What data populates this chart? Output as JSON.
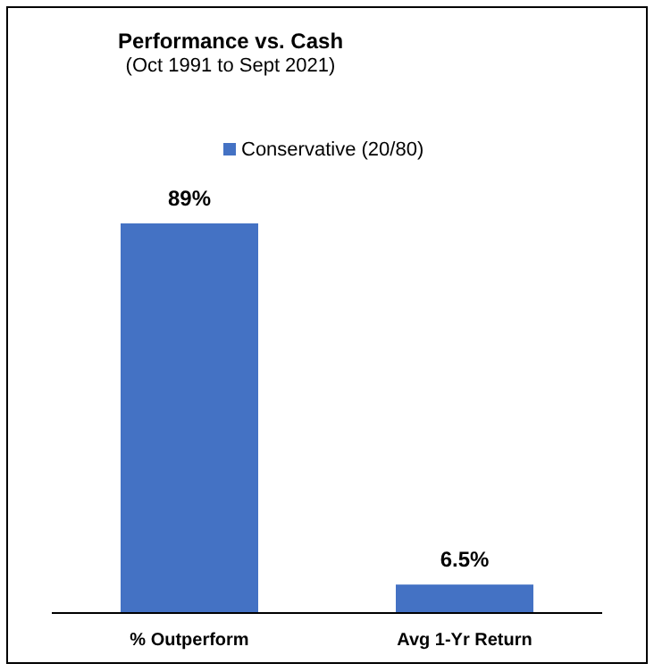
{
  "chart_data": {
    "type": "bar",
    "title": "Performance vs. Cash",
    "subtitle": "(Oct 1991 to Sept 2021)",
    "categories": [
      "% Outperform",
      "Avg 1-Yr Return"
    ],
    "series": [
      {
        "name": "Conservative (20/80)",
        "color": "#4472c4",
        "values": [
          89,
          6.5
        ],
        "value_labels": [
          "89%",
          "6.5%"
        ]
      }
    ],
    "legend": "top"
  }
}
